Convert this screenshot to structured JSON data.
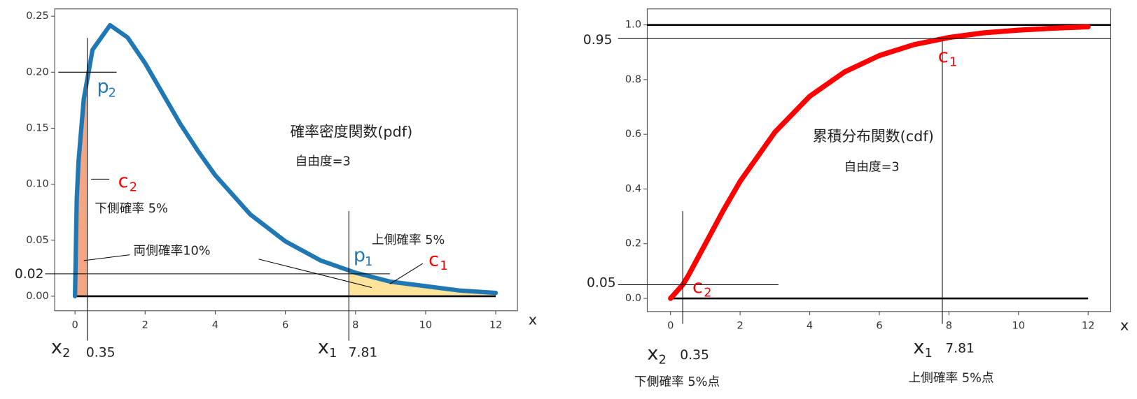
{
  "chart_data": [
    {
      "type": "line",
      "title": "確率密度関数(pdf)",
      "subtitle": "自由度=3",
      "x_label": "x",
      "x": [
        0,
        0.05,
        0.1,
        0.25,
        0.5,
        1,
        1.5,
        2,
        2.5,
        3,
        3.5,
        4,
        5,
        6,
        7,
        8,
        9,
        10,
        11,
        12
      ],
      "series": [
        {
          "color": "#1f77b4",
          "values": [
            0,
            0.087,
            0.12,
            0.176,
            0.22,
            0.242,
            0.231,
            0.208,
            0.181,
            0.154,
            0.13,
            0.108,
            0.073,
            0.049,
            0.032,
            0.021,
            0.013,
            0.009,
            0.005,
            0.003
          ]
        }
      ],
      "xlim": [
        -0.58,
        12.62
      ],
      "ylim": [
        -0.013,
        0.2565
      ],
      "xticks": [
        0,
        2,
        4,
        6,
        8,
        10,
        12
      ],
      "yticks": [
        {
          "value": 0,
          "label": "0.00"
        },
        0.05,
        {
          "value": 0.1,
          "label": "0.10"
        },
        0.15,
        {
          "value": 0.2,
          "label": "0.20"
        },
        0.25
      ],
      "hlines": [
        0
      ],
      "critical_values": [
        {
          "symbol": "x",
          "subscript": "2",
          "value": 0.35,
          "tail_color": "#f4a582"
        },
        {
          "symbol": "x",
          "subscript": "1",
          "value": 7.81,
          "tail_color": "#fde49a"
        }
      ],
      "levels": [
        {
          "symbol": "p",
          "subscript": "2",
          "value": 0.2,
          "value_shown": false,
          "color": "#1f77b4"
        },
        {
          "symbol": "p",
          "subscript": "1",
          "value": 0.02,
          "value_shown": true,
          "color": "#1f77b4"
        }
      ],
      "point_labels": [
        {
          "symbol": "c",
          "subscript": "2",
          "color": "#ff0000"
        },
        {
          "symbol": "c",
          "subscript": "1",
          "color": "#ff0000"
        }
      ],
      "notes": [
        "下側確率 5%",
        "上側確率 5%",
        "両側確率10%"
      ]
    },
    {
      "type": "line",
      "title": "累積分布関数(cdf)",
      "subtitle": "自由度=3",
      "x_label": "x",
      "x": [
        0,
        0.35,
        0.5,
        1,
        1.5,
        2,
        3,
        4,
        5,
        6,
        7,
        8,
        9,
        10,
        11,
        12
      ],
      "series": [
        {
          "color": "#ff0000",
          "values": [
            0,
            0.05,
            0.081,
            0.199,
            0.318,
            0.428,
            0.608,
            0.739,
            0.828,
            0.888,
            0.928,
            0.954,
            0.971,
            0.981,
            0.988,
            0.993
          ]
        }
      ],
      "xlim": [
        -0.67,
        12.65
      ],
      "ylim": [
        -0.048,
        1.0585
      ],
      "xticks": [
        0,
        2,
        4,
        6,
        8,
        10,
        12
      ],
      "yticks": [
        {
          "value": 0,
          "label": "0.0"
        },
        0.2,
        0.4,
        0.6,
        0.8,
        {
          "value": 1,
          "label": "1.0"
        }
      ],
      "hlines": [
        0,
        1
      ],
      "critical_values": [
        {
          "symbol": "x",
          "subscript": "2",
          "value": 0.35
        },
        {
          "symbol": "x",
          "subscript": "1",
          "value": 7.81
        }
      ],
      "levels": [
        {
          "value": 0.95,
          "value_shown": true
        },
        {
          "value": 0.05,
          "value_shown": true
        }
      ],
      "point_labels": [
        {
          "symbol": "c",
          "subscript": "1",
          "color": "#ff0000"
        },
        {
          "symbol": "c",
          "subscript": "2",
          "color": "#ff0000"
        }
      ],
      "notes": [
        "下側確率 5%点",
        "上側確率 5%点"
      ]
    }
  ]
}
